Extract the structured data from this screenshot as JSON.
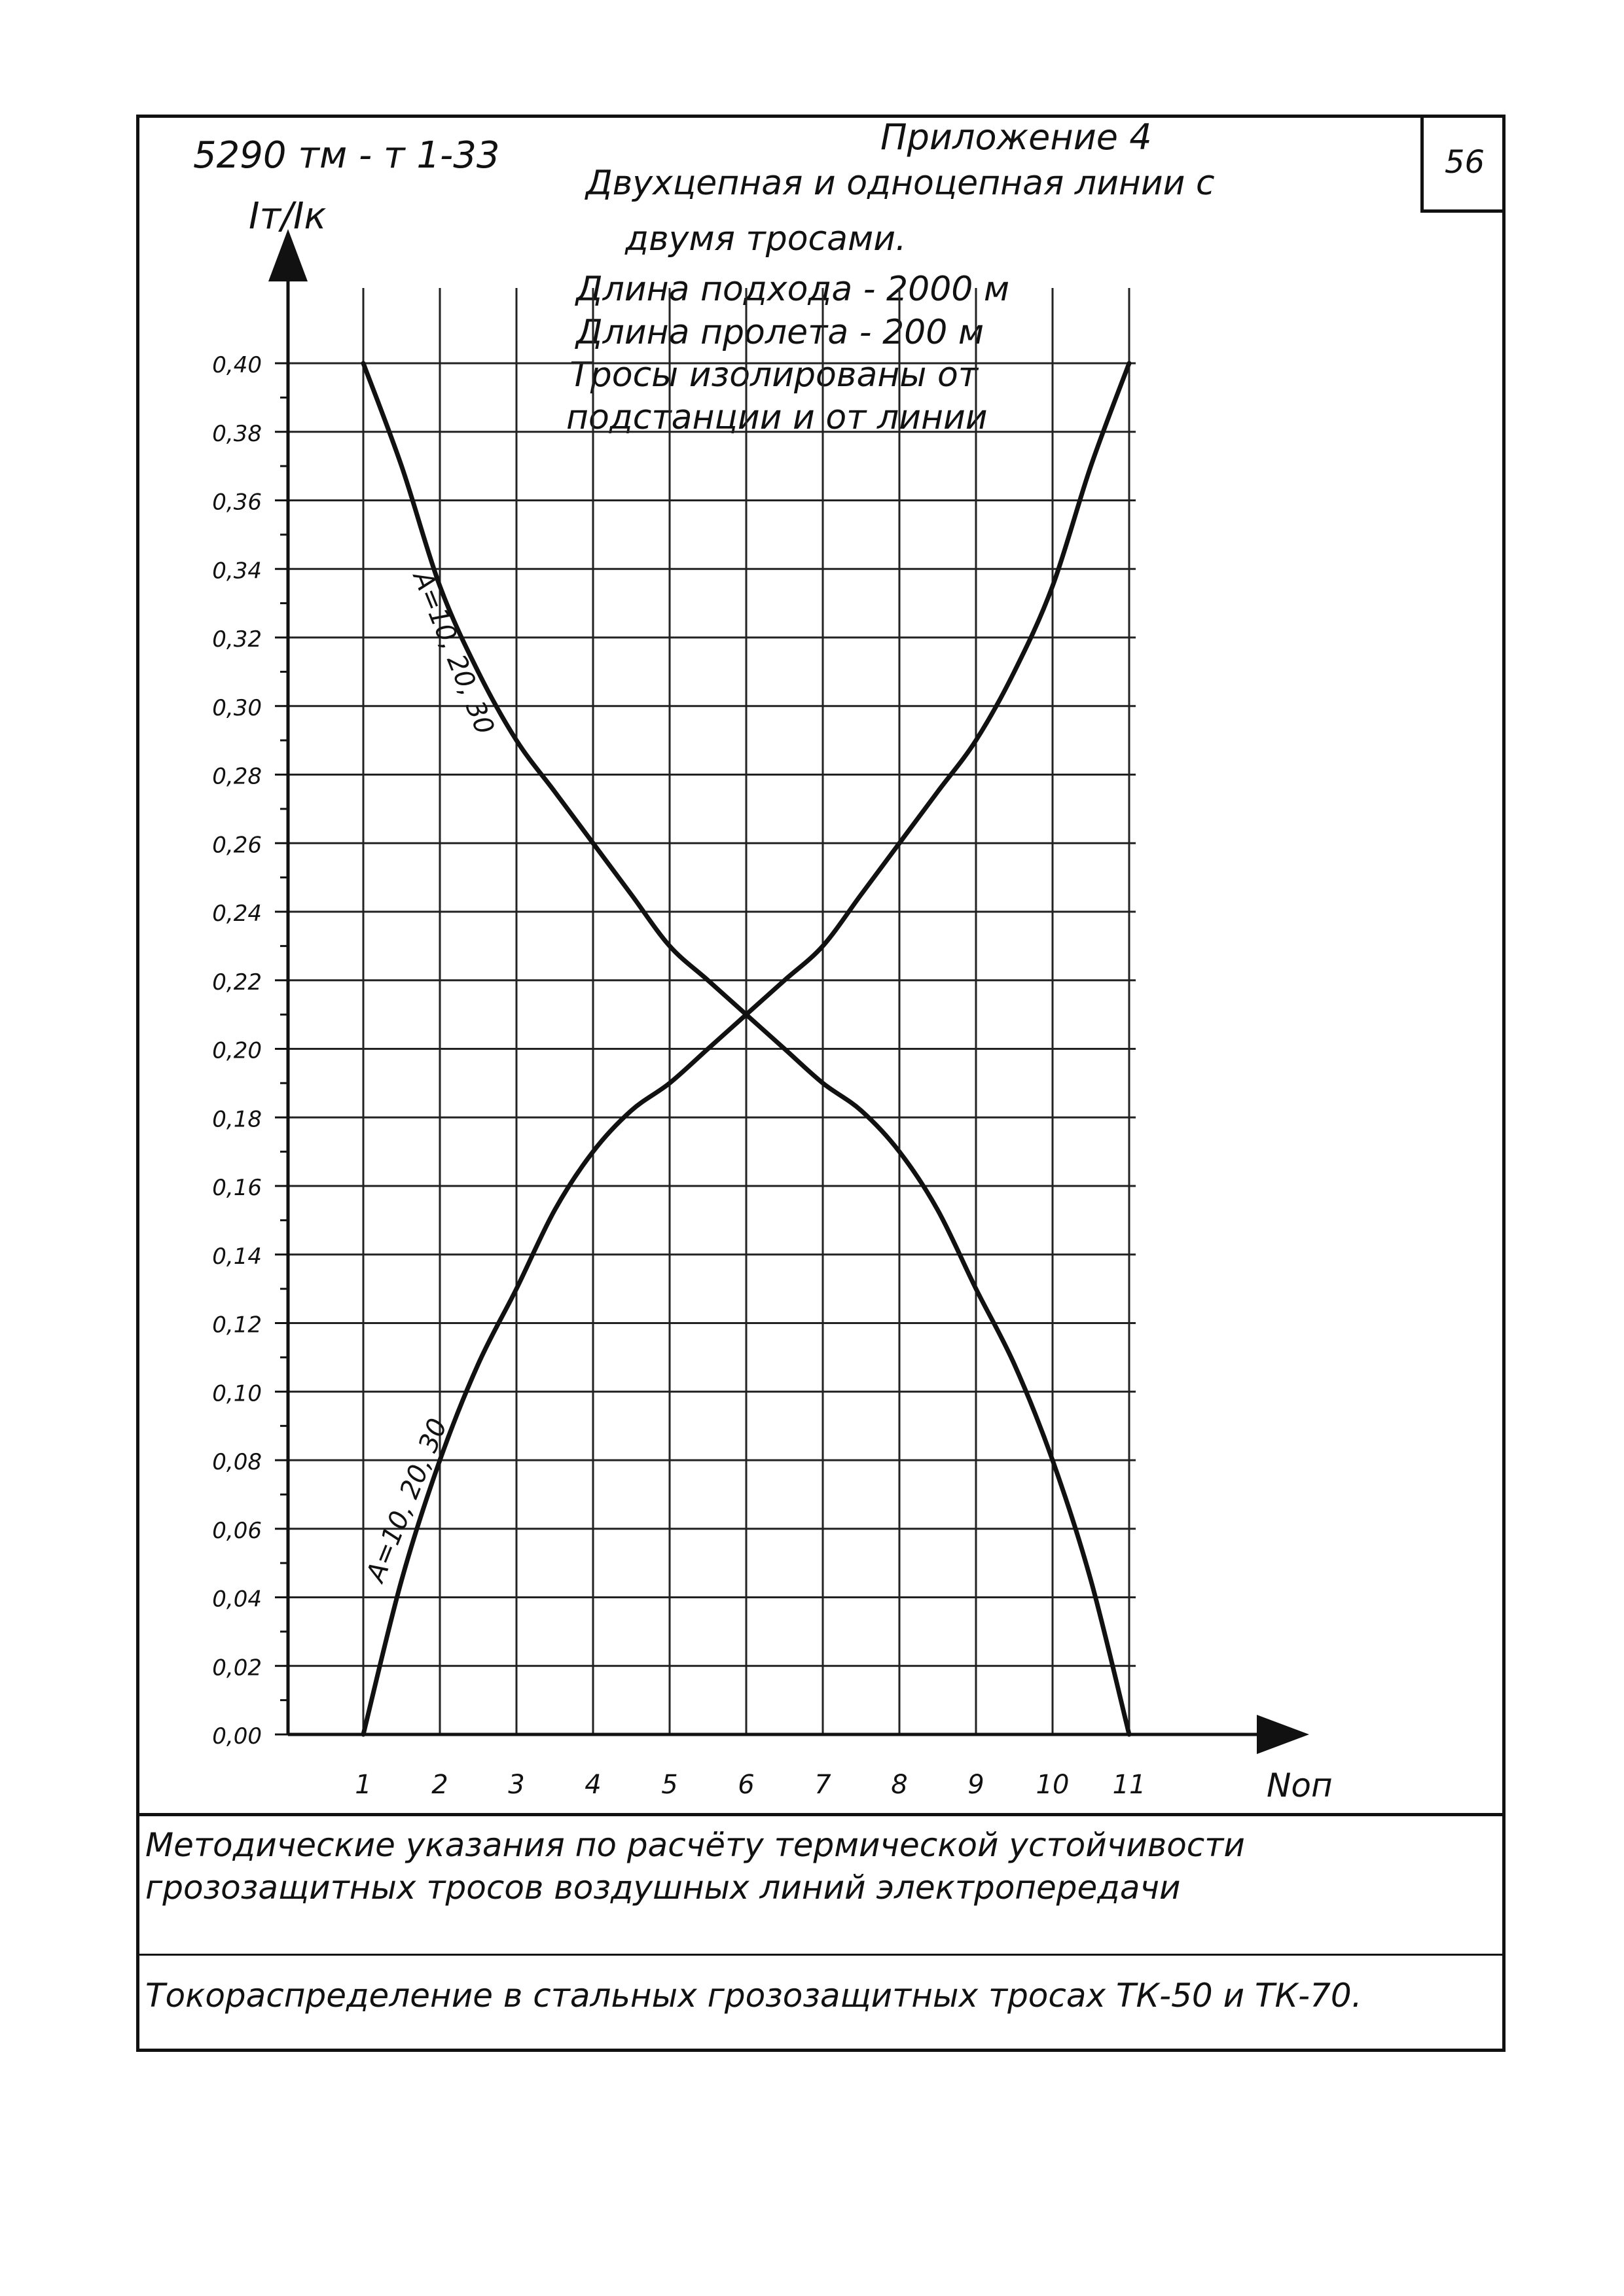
{
  "header": {
    "doc_number": "5290 тм - т 1-33",
    "appendix": "Приложение 4",
    "page_number": "56"
  },
  "description": {
    "line1": "Двухцепная и одноцепная   линии  с",
    "line2": "двумя   тросами.",
    "line3": "Длина подхода  -  2000 м",
    "line4": "Длина пролета  -  200 м",
    "line5": "Тросы изолированы  от",
    "line6": "подстанции  и от  линии"
  },
  "footer": {
    "line1": "Методические  указания  по  расчёту  термической  устойчивости",
    "line2": "грозозащитных  тросов  воздушных  линий  электропередачи",
    "line3": "Токораспределение  в стальных  грозозащитных  тросах  ТК-50 и ТК-70."
  },
  "chart_data": {
    "type": "line",
    "ylabel": "Iт/Iк",
    "xlabel": "Nоп",
    "xlim": [
      0,
      12.4
    ],
    "ylim": [
      0,
      0.4
    ],
    "x_ticks": [
      "1",
      "2",
      "3",
      "4",
      "5",
      "6",
      "7",
      "8",
      "9",
      "10",
      "11"
    ],
    "y_ticks": [
      "0,00",
      "0,02",
      "0,04",
      "0,06",
      "0,08",
      "0,10",
      "0,12",
      "0,14",
      "0,16",
      "0,18",
      "0,20",
      "0,22",
      "0,24",
      "0,26",
      "0,28",
      "0,30",
      "0,32",
      "0,34",
      "0,36",
      "0,38",
      "0,40"
    ],
    "grid": true,
    "series": [
      {
        "name": "A=10, 20, 30",
        "label_near": "top-left",
        "x": [
          1,
          1.5,
          2,
          2.5,
          3,
          3.5,
          4,
          4.5,
          5,
          5.5,
          6,
          6.5,
          7,
          7.5,
          8,
          8.5,
          9,
          9.5,
          10,
          10.5,
          11
        ],
        "y": [
          0.4,
          0.37,
          0.335,
          0.31,
          0.29,
          0.275,
          0.26,
          0.245,
          0.23,
          0.22,
          0.21,
          0.2,
          0.19,
          0.182,
          0.17,
          0.153,
          0.13,
          0.108,
          0.08,
          0.045,
          0.0
        ]
      },
      {
        "name": "A=10, 20, 30",
        "label_near": "bottom-left",
        "x": [
          1,
          1.5,
          2,
          2.5,
          3,
          3.5,
          4,
          4.5,
          5,
          5.5,
          6,
          6.5,
          7,
          7.5,
          8,
          8.5,
          9,
          9.5,
          10,
          10.5,
          11
        ],
        "y": [
          0.0,
          0.045,
          0.08,
          0.108,
          0.13,
          0.153,
          0.17,
          0.182,
          0.19,
          0.2,
          0.21,
          0.22,
          0.23,
          0.245,
          0.26,
          0.275,
          0.29,
          0.31,
          0.335,
          0.37,
          0.4
        ]
      }
    ]
  }
}
